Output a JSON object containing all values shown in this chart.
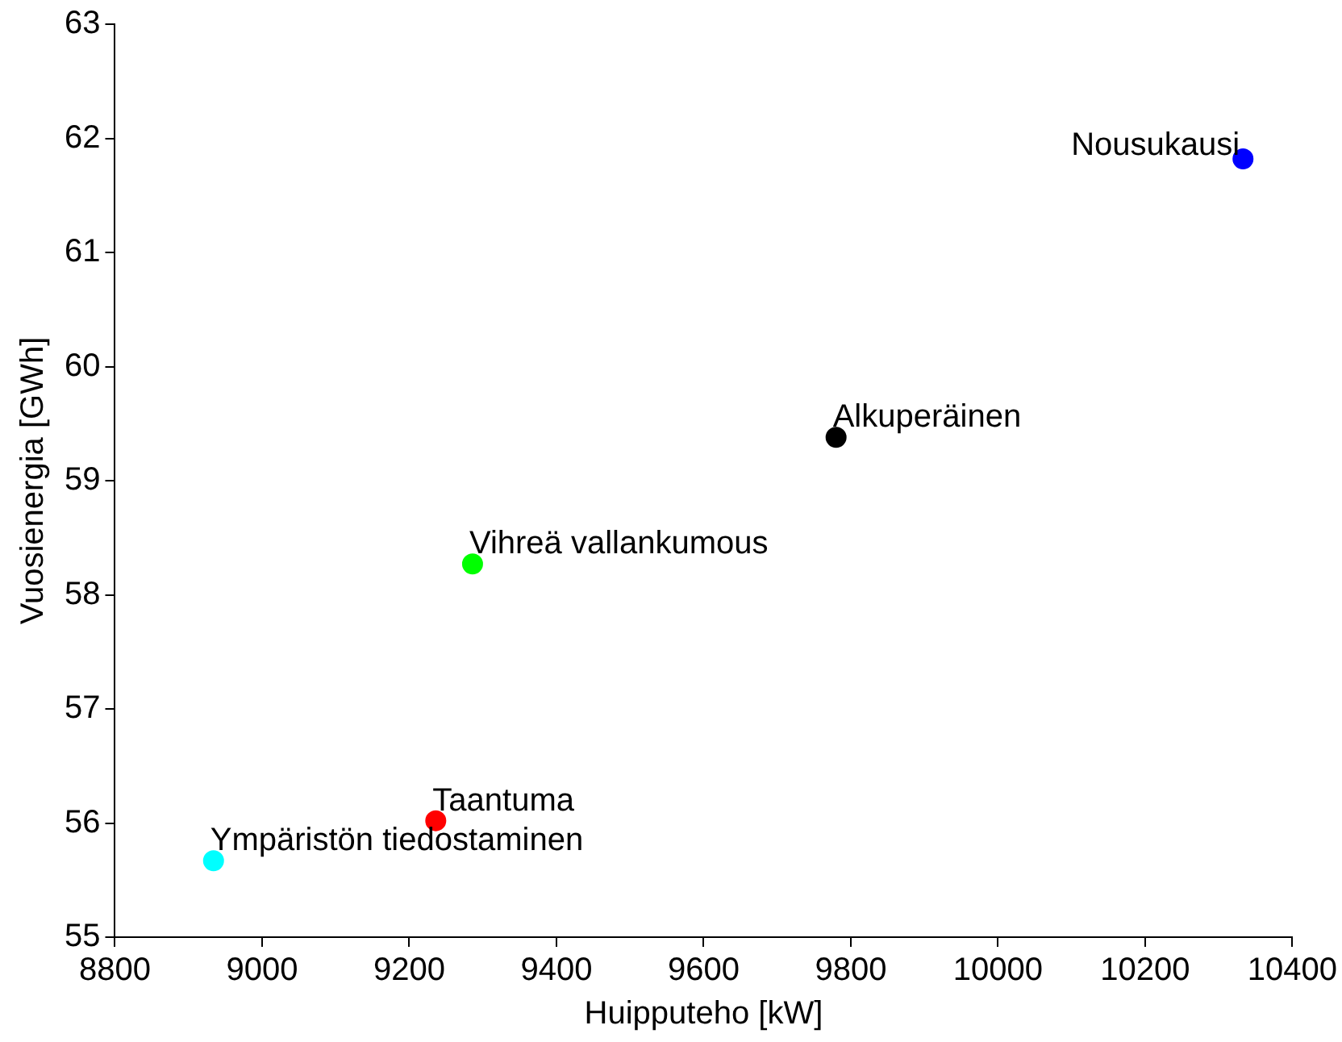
{
  "chart_data": {
    "type": "scatter",
    "xlabel": "Huipputeho [kW]",
    "ylabel": "Vuosienergia [GWh]",
    "series": [
      {
        "name": "Nousukausi",
        "color": "#0000ff",
        "x": [
          10333
        ],
        "values": [
          61.82
        ]
      },
      {
        "name": "Alkuperäinen",
        "color": "#000000",
        "x": [
          9780
        ],
        "values": [
          59.38
        ]
      },
      {
        "name": "Vihreä vallankumous",
        "color": "#00ff00",
        "x": [
          9286
        ],
        "values": [
          58.27
        ]
      },
      {
        "name": "Taantuma",
        "color": "#ff0000",
        "x": [
          9236
        ],
        "values": [
          56.02
        ]
      },
      {
        "name": "Ympäristön tiedostaminen",
        "color": "#00ffff",
        "x": [
          8934
        ],
        "values": [
          55.67
        ]
      }
    ],
    "xlim": [
      8800,
      10400
    ],
    "xticks": [
      8800,
      9000,
      9200,
      9400,
      9600,
      9800,
      10000,
      10200,
      10400
    ],
    "ylim": [
      55,
      63
    ],
    "yticks": [
      55,
      56,
      57,
      58,
      59,
      60,
      61,
      62,
      63
    ],
    "grid": false,
    "legend": false,
    "marker": "circle"
  }
}
